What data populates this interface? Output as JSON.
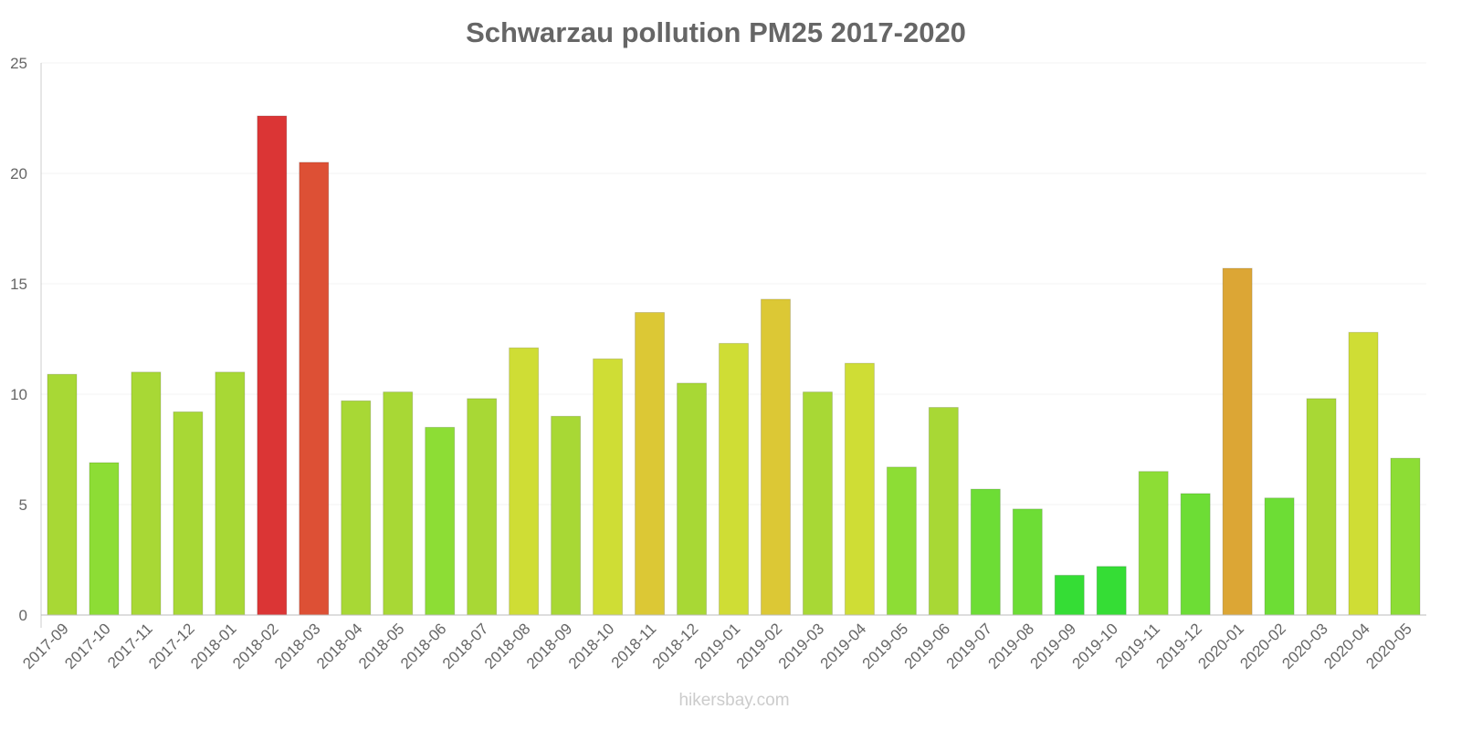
{
  "chart_data": {
    "type": "bar",
    "title": "Schwarzau pollution PM25 2017-2020",
    "xlabel": "",
    "ylabel": "",
    "ylim": [
      0,
      25
    ],
    "yticks": [
      "0",
      "5",
      "10",
      "15",
      "20",
      "25"
    ],
    "grid": true,
    "categories": [
      "2017-09",
      "2017-10",
      "2017-11",
      "2017-12",
      "2018-01",
      "2018-02",
      "2018-03",
      "2018-04",
      "2018-05",
      "2018-06",
      "2018-07",
      "2018-08",
      "2018-09",
      "2018-10",
      "2018-11",
      "2018-12",
      "2019-01",
      "2019-02",
      "2019-03",
      "2019-04",
      "2019-05",
      "2019-06",
      "2019-07",
      "2019-08",
      "2019-09",
      "2019-10",
      "2019-11",
      "2019-12",
      "2020-01",
      "2020-02",
      "2020-03",
      "2020-04",
      "2020-05"
    ],
    "values": [
      10.9,
      6.9,
      11.0,
      9.2,
      11.0,
      22.6,
      20.5,
      9.7,
      10.1,
      8.5,
      9.8,
      12.1,
      9.0,
      11.6,
      13.7,
      10.5,
      12.3,
      14.3,
      10.1,
      11.4,
      6.7,
      9.4,
      5.7,
      4.8,
      1.8,
      2.2,
      6.5,
      5.5,
      15.7,
      5.3,
      9.8,
      12.8,
      7.1
    ],
    "colors": [
      "#a8d835",
      "#8ddd35",
      "#a8d835",
      "#a8d835",
      "#a8d835",
      "#db3535",
      "#dd5035",
      "#a8d835",
      "#a8d835",
      "#8ddd35",
      "#a8d835",
      "#cfdd35",
      "#a8d835",
      "#cfdd35",
      "#dcc835",
      "#a8d835",
      "#cfdd35",
      "#dcc835",
      "#a8d835",
      "#cfdd35",
      "#8ddd35",
      "#a8d835",
      "#6ddd35",
      "#6ddd35",
      "#35dd35",
      "#35dd35",
      "#8ddd35",
      "#6ddd35",
      "#dca635",
      "#6ddd35",
      "#a8d835",
      "#cfdd35",
      "#8ddd35"
    ]
  },
  "footer": "hikersbay.com"
}
